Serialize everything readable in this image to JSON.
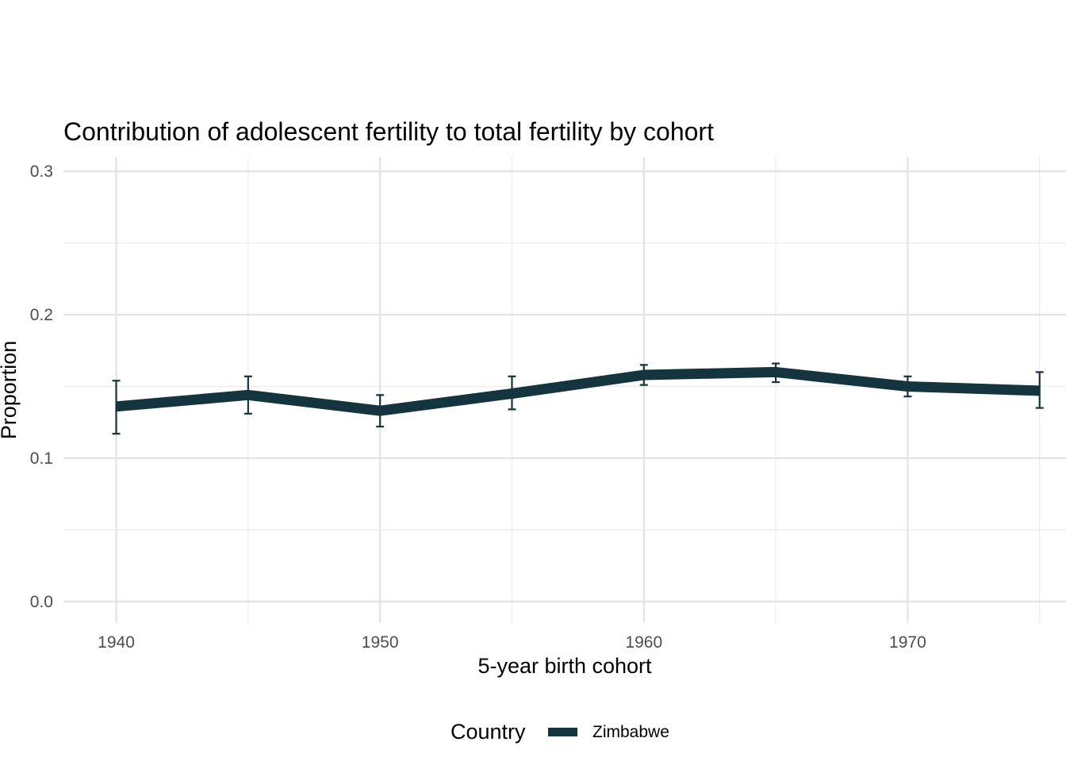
{
  "chart_data": {
    "type": "line",
    "title": "Contribution of adolescent fertility to total fertility by cohort",
    "xlabel": "5-year birth cohort",
    "ylabel": "Proportion",
    "x": [
      1940,
      1945,
      1950,
      1955,
      1960,
      1965,
      1970,
      1975
    ],
    "xlim": [
      1938,
      1976
    ],
    "ylim": [
      -0.015,
      0.31
    ],
    "xticks": [
      "1940",
      "1950",
      "1960",
      "1970"
    ],
    "yticks": [
      "0.0",
      "0.1",
      "0.2",
      "0.3"
    ],
    "grid": true,
    "legend": {
      "title": "Country",
      "position": "bottom"
    },
    "series": [
      {
        "name": "Zimbabwe",
        "color": "#14343f",
        "values": [
          0.136,
          0.144,
          0.133,
          0.145,
          0.158,
          0.16,
          0.15,
          0.147
        ],
        "lower": [
          0.117,
          0.131,
          0.122,
          0.134,
          0.151,
          0.153,
          0.143,
          0.135
        ],
        "upper": [
          0.154,
          0.157,
          0.144,
          0.157,
          0.165,
          0.166,
          0.157,
          0.16
        ]
      }
    ]
  }
}
